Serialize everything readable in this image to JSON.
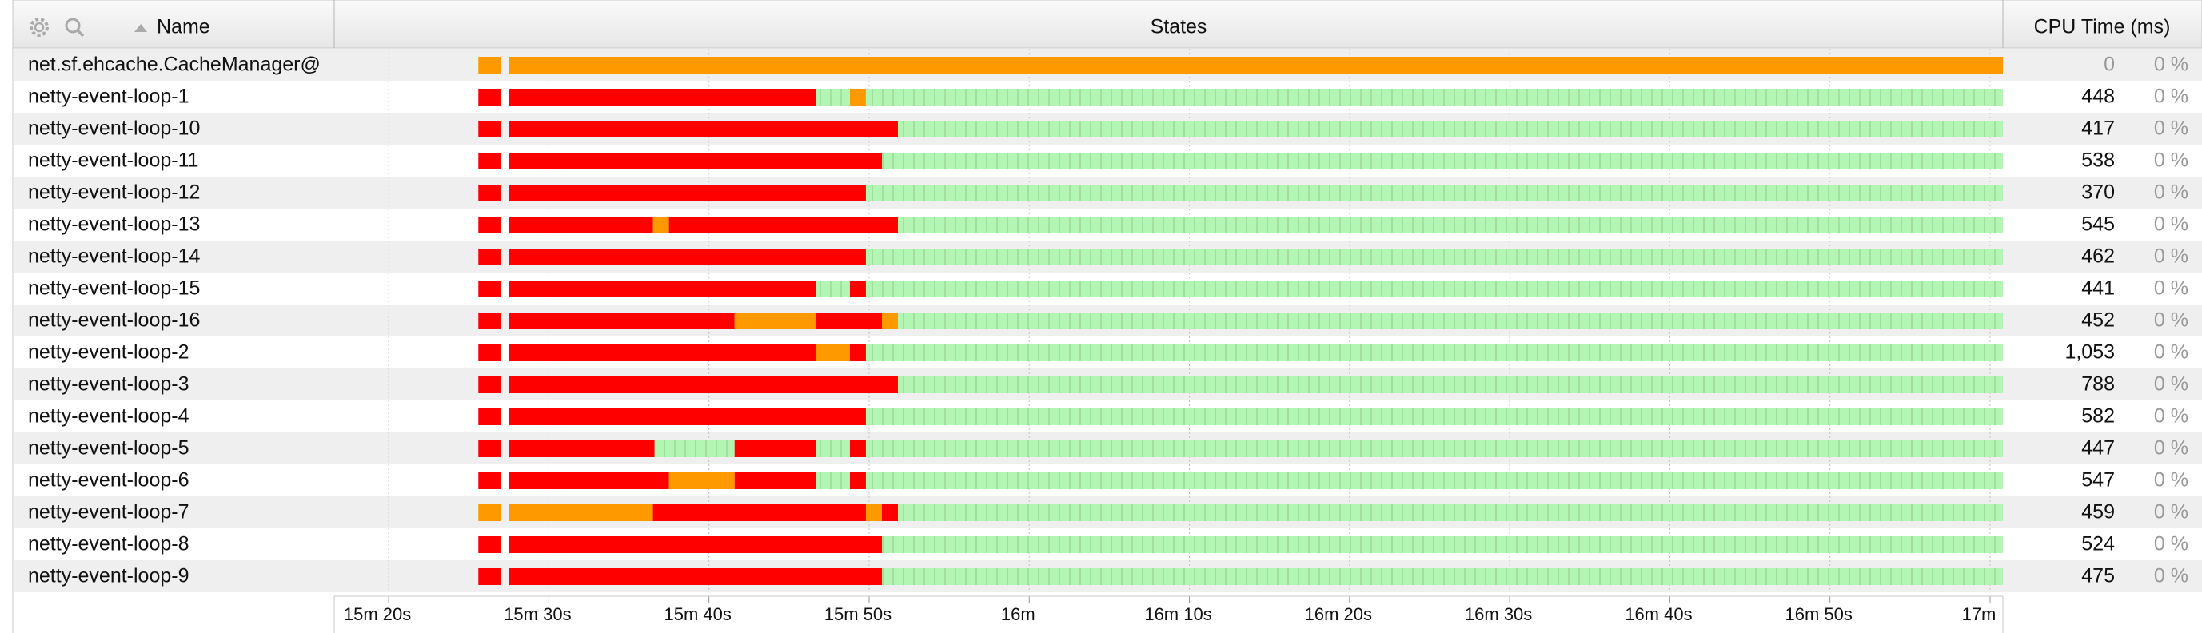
{
  "header": {
    "name": "Name",
    "states": "States",
    "cpu": "CPU Time (ms)"
  },
  "timeline": {
    "xlim": [
      916.6,
      1020.8
    ],
    "xticks": [
      {
        "value": 920,
        "label": "15m 20s"
      },
      {
        "value": 930,
        "label": "15m 30s"
      },
      {
        "value": 940,
        "label": "15m 40s"
      },
      {
        "value": 950,
        "label": "15m 50s"
      },
      {
        "value": 960,
        "label": "16m"
      },
      {
        "value": 970,
        "label": "16m 10s"
      },
      {
        "value": 980,
        "label": "16m 20s"
      },
      {
        "value": 990,
        "label": "16m 30s"
      },
      {
        "value": 1000,
        "label": "16m 40s"
      },
      {
        "value": 1010,
        "label": "16m 50s"
      },
      {
        "value": 1020,
        "label": "17m"
      }
    ],
    "grid": true,
    "striped_colors": [
      "#b3f5b3"
    ]
  },
  "rows": [
    {
      "name": "net.sf.ehcache.CacheManager@",
      "cpu": 0,
      "percent": "0 %",
      "segments": [
        {
          "start": 925.6,
          "end": 927.0,
          "color": "#ff9900"
        },
        {
          "start": 927.5,
          "end": 1020.8,
          "color": "#ff9900"
        }
      ]
    },
    {
      "name": "netty-event-loop-1",
      "cpu": 448,
      "percent": "0 %",
      "segments": [
        {
          "start": 925.6,
          "end": 927.0,
          "color": "#ff0000"
        },
        {
          "start": 927.5,
          "end": 946.7,
          "color": "#ff0000"
        },
        {
          "start": 946.7,
          "end": 948.8,
          "color": "#b3f5b3"
        },
        {
          "start": 948.8,
          "end": 949.8,
          "color": "#ff9900"
        },
        {
          "start": 949.8,
          "end": 1020.8,
          "color": "#b3f5b3"
        }
      ]
    },
    {
      "name": "netty-event-loop-10",
      "cpu": 417,
      "percent": "0 %",
      "segments": [
        {
          "start": 925.6,
          "end": 927.0,
          "color": "#ff0000"
        },
        {
          "start": 927.5,
          "end": 951.8,
          "color": "#ff0000"
        },
        {
          "start": 951.8,
          "end": 1020.8,
          "color": "#b3f5b3"
        }
      ]
    },
    {
      "name": "netty-event-loop-11",
      "cpu": 538,
      "percent": "0 %",
      "segments": [
        {
          "start": 925.6,
          "end": 927.0,
          "color": "#ff0000"
        },
        {
          "start": 927.5,
          "end": 950.8,
          "color": "#ff0000"
        },
        {
          "start": 950.8,
          "end": 1020.8,
          "color": "#b3f5b3"
        }
      ]
    },
    {
      "name": "netty-event-loop-12",
      "cpu": 370,
      "percent": "0 %",
      "segments": [
        {
          "start": 925.6,
          "end": 927.0,
          "color": "#ff0000"
        },
        {
          "start": 927.5,
          "end": 949.8,
          "color": "#ff0000"
        },
        {
          "start": 949.8,
          "end": 1020.8,
          "color": "#b3f5b3"
        }
      ]
    },
    {
      "name": "netty-event-loop-13",
      "cpu": 545,
      "percent": "0 %",
      "segments": [
        {
          "start": 925.6,
          "end": 927.0,
          "color": "#ff0000"
        },
        {
          "start": 927.5,
          "end": 936.5,
          "color": "#ff0000"
        },
        {
          "start": 936.5,
          "end": 937.5,
          "color": "#ff9900"
        },
        {
          "start": 937.5,
          "end": 951.8,
          "color": "#ff0000"
        },
        {
          "start": 951.8,
          "end": 1020.8,
          "color": "#b3f5b3"
        }
      ]
    },
    {
      "name": "netty-event-loop-14",
      "cpu": 462,
      "percent": "0 %",
      "segments": [
        {
          "start": 925.6,
          "end": 927.0,
          "color": "#ff0000"
        },
        {
          "start": 927.5,
          "end": 949.8,
          "color": "#ff0000"
        },
        {
          "start": 949.8,
          "end": 1020.8,
          "color": "#b3f5b3"
        }
      ]
    },
    {
      "name": "netty-event-loop-15",
      "cpu": 441,
      "percent": "0 %",
      "segments": [
        {
          "start": 925.6,
          "end": 927.0,
          "color": "#ff0000"
        },
        {
          "start": 927.5,
          "end": 946.7,
          "color": "#ff0000"
        },
        {
          "start": 946.7,
          "end": 948.8,
          "color": "#b3f5b3"
        },
        {
          "start": 948.8,
          "end": 949.8,
          "color": "#ff0000"
        },
        {
          "start": 949.8,
          "end": 1020.8,
          "color": "#b3f5b3"
        }
      ]
    },
    {
      "name": "netty-event-loop-16",
      "cpu": 452,
      "percent": "0 %",
      "segments": [
        {
          "start": 925.6,
          "end": 927.0,
          "color": "#ff0000"
        },
        {
          "start": 927.5,
          "end": 941.6,
          "color": "#ff0000"
        },
        {
          "start": 941.6,
          "end": 946.7,
          "color": "#ff9900"
        },
        {
          "start": 946.7,
          "end": 950.8,
          "color": "#ff0000"
        },
        {
          "start": 950.8,
          "end": 951.8,
          "color": "#ff9900"
        },
        {
          "start": 951.8,
          "end": 1020.8,
          "color": "#b3f5b3"
        }
      ]
    },
    {
      "name": "netty-event-loop-2",
      "cpu": {
        "value": 1053,
        "label": "1,053"
      },
      "percent": "0 %",
      "segments": [
        {
          "start": 925.6,
          "end": 927.0,
          "color": "#ff0000"
        },
        {
          "start": 927.5,
          "end": 946.7,
          "color": "#ff0000"
        },
        {
          "start": 946.7,
          "end": 948.8,
          "color": "#ff9900"
        },
        {
          "start": 948.8,
          "end": 949.8,
          "color": "#ff0000"
        },
        {
          "start": 949.8,
          "end": 1020.8,
          "color": "#b3f5b3"
        }
      ]
    },
    {
      "name": "netty-event-loop-3",
      "cpu": 788,
      "percent": "0 %",
      "segments": [
        {
          "start": 925.6,
          "end": 927.0,
          "color": "#ff0000"
        },
        {
          "start": 927.5,
          "end": 951.8,
          "color": "#ff0000"
        },
        {
          "start": 951.8,
          "end": 1020.8,
          "color": "#b3f5b3"
        }
      ]
    },
    {
      "name": "netty-event-loop-4",
      "cpu": 582,
      "percent": "0 %",
      "segments": [
        {
          "start": 925.6,
          "end": 927.0,
          "color": "#ff0000"
        },
        {
          "start": 927.5,
          "end": 949.8,
          "color": "#ff0000"
        },
        {
          "start": 949.8,
          "end": 1020.8,
          "color": "#b3f5b3"
        }
      ]
    },
    {
      "name": "netty-event-loop-5",
      "cpu": 447,
      "percent": "0 %",
      "segments": [
        {
          "start": 925.6,
          "end": 927.0,
          "color": "#ff0000"
        },
        {
          "start": 927.5,
          "end": 936.6,
          "color": "#ff0000"
        },
        {
          "start": 936.6,
          "end": 941.6,
          "color": "#b3f5b3"
        },
        {
          "start": 941.6,
          "end": 946.7,
          "color": "#ff0000"
        },
        {
          "start": 946.7,
          "end": 948.8,
          "color": "#b3f5b3"
        },
        {
          "start": 948.8,
          "end": 949.8,
          "color": "#ff0000"
        },
        {
          "start": 949.8,
          "end": 1020.8,
          "color": "#b3f5b3"
        }
      ]
    },
    {
      "name": "netty-event-loop-6",
      "cpu": 547,
      "percent": "0 %",
      "segments": [
        {
          "start": 925.6,
          "end": 927.0,
          "color": "#ff0000"
        },
        {
          "start": 927.5,
          "end": 937.5,
          "color": "#ff0000"
        },
        {
          "start": 937.5,
          "end": 941.6,
          "color": "#ff9900"
        },
        {
          "start": 941.6,
          "end": 946.7,
          "color": "#ff0000"
        },
        {
          "start": 946.7,
          "end": 948.8,
          "color": "#b3f5b3"
        },
        {
          "start": 948.8,
          "end": 949.8,
          "color": "#ff0000"
        },
        {
          "start": 949.8,
          "end": 1020.8,
          "color": "#b3f5b3"
        }
      ]
    },
    {
      "name": "netty-event-loop-7",
      "cpu": 459,
      "percent": "0 %",
      "segments": [
        {
          "start": 925.6,
          "end": 927.0,
          "color": "#ff9900"
        },
        {
          "start": 927.5,
          "end": 936.5,
          "color": "#ff9900"
        },
        {
          "start": 936.5,
          "end": 949.8,
          "color": "#ff0000"
        },
        {
          "start": 949.8,
          "end": 950.8,
          "color": "#ff9900"
        },
        {
          "start": 950.8,
          "end": 951.8,
          "color": "#ff0000"
        },
        {
          "start": 951.8,
          "end": 1020.8,
          "color": "#b3f5b3"
        }
      ]
    },
    {
      "name": "netty-event-loop-8",
      "cpu": 524,
      "percent": "0 %",
      "segments": [
        {
          "start": 925.6,
          "end": 927.0,
          "color": "#ff0000"
        },
        {
          "start": 927.5,
          "end": 950.8,
          "color": "#ff0000"
        },
        {
          "start": 950.8,
          "end": 1020.8,
          "color": "#b3f5b3"
        }
      ]
    },
    {
      "name": "netty-event-loop-9",
      "cpu": 475,
      "percent": "0 %",
      "segments": [
        {
          "start": 925.6,
          "end": 927.0,
          "color": "#ff0000"
        },
        {
          "start": 927.5,
          "end": 950.8,
          "color": "#ff0000"
        },
        {
          "start": 950.8,
          "end": 1020.8,
          "color": "#b3f5b3"
        }
      ]
    }
  ]
}
